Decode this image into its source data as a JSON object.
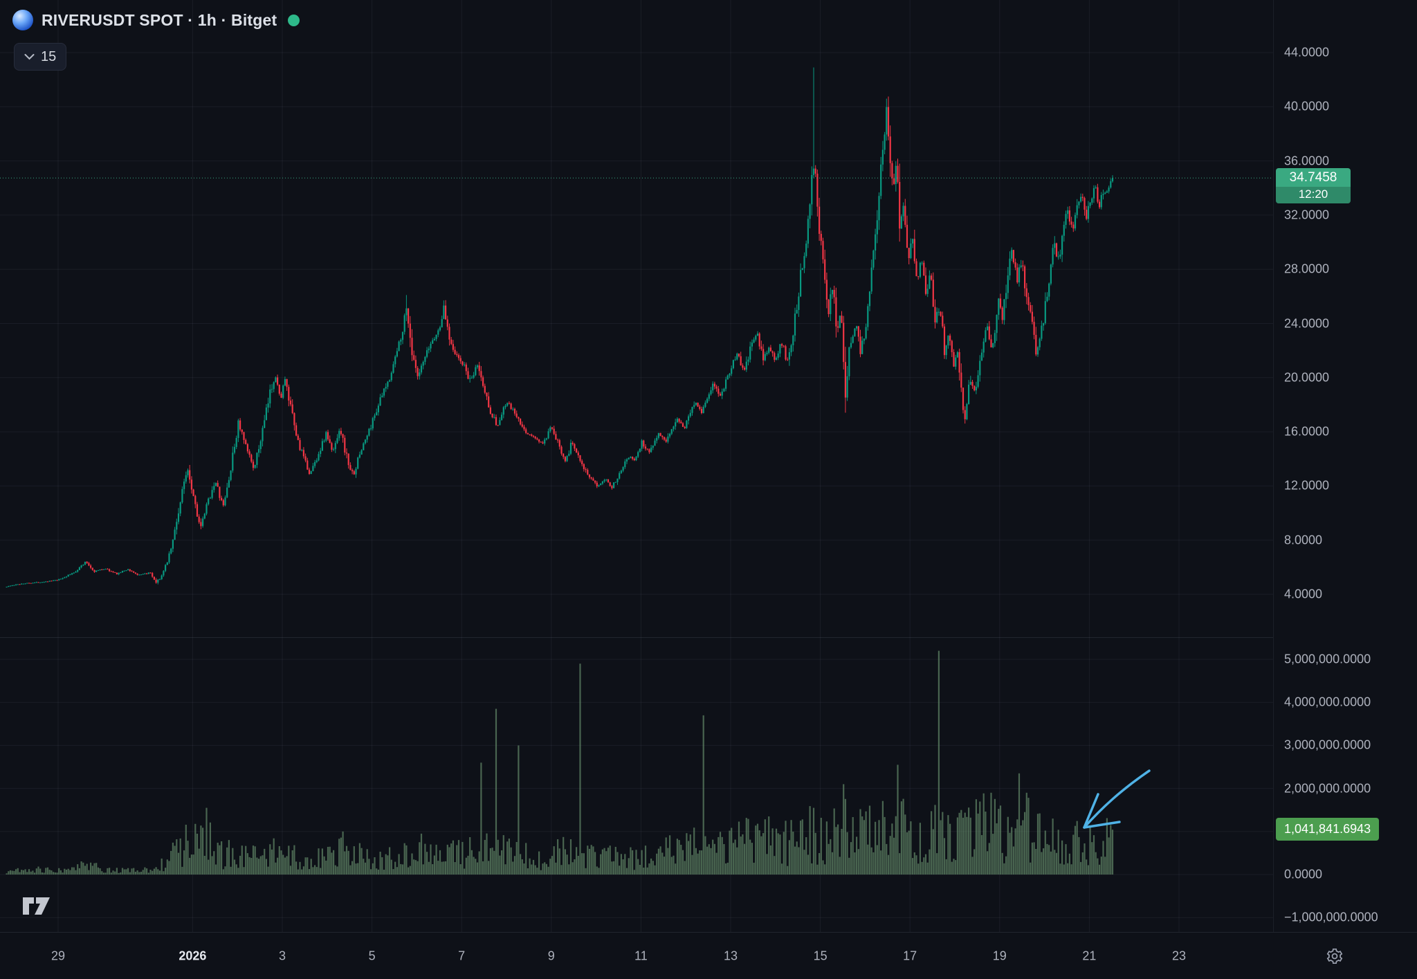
{
  "header": {
    "symbol_title": "RIVERUSDT SPOT · 1h · Bitget",
    "interval_badge": "15"
  },
  "price_label": {
    "price": "34.7458",
    "countdown": "12:20"
  },
  "volume_label": {
    "value": "1,041,841.6943"
  },
  "price_scale": {
    "ticks": [
      {
        "v": 44,
        "label": "44.0000"
      },
      {
        "v": 40,
        "label": "40.0000"
      },
      {
        "v": 36,
        "label": "36.0000"
      },
      {
        "v": 32,
        "label": "32.0000"
      },
      {
        "v": 28,
        "label": "28.0000"
      },
      {
        "v": 24,
        "label": "24.0000"
      },
      {
        "v": 20,
        "label": "20.0000"
      },
      {
        "v": 16,
        "label": "16.0000"
      },
      {
        "v": 12,
        "label": "12.0000"
      },
      {
        "v": 8,
        "label": "8.0000"
      },
      {
        "v": 4,
        "label": "4.0000"
      }
    ]
  },
  "volume_scale": {
    "ticks": [
      {
        "v": 5,
        "label": "5,000,000.0000"
      },
      {
        "v": 4,
        "label": "4,000,000.0000"
      },
      {
        "v": 3,
        "label": "3,000,000.0000"
      },
      {
        "v": 2,
        "label": "2,000,000.0000"
      },
      {
        "v": 1,
        "label": "1,000,000.0000"
      },
      {
        "v": 0,
        "label": "0.0000"
      },
      {
        "v": -1,
        "label": "−1,000,000.0000"
      }
    ]
  },
  "time_axis": {
    "ticks": [
      {
        "t": 0,
        "label": "29"
      },
      {
        "t": 3,
        "label": "2026",
        "major": true
      },
      {
        "t": 5,
        "label": "3"
      },
      {
        "t": 7,
        "label": "5"
      },
      {
        "t": 9,
        "label": "7"
      },
      {
        "t": 11,
        "label": "9"
      },
      {
        "t": 13,
        "label": "11"
      },
      {
        "t": 15,
        "label": "13"
      },
      {
        "t": 17,
        "label": "15"
      },
      {
        "t": 19,
        "label": "17"
      },
      {
        "t": 21,
        "label": "19"
      },
      {
        "t": 23,
        "label": "21"
      },
      {
        "t": 25,
        "label": "23"
      }
    ]
  },
  "colors": {
    "background": "#0e1118",
    "grid": "rgba(150,160,186,0.09)",
    "up": "#089981",
    "down": "#f23645",
    "volume_bar": "#6e9a73",
    "axis_text": "#aeb2bd",
    "title_text": "#dde1e8",
    "status_dot": "#2eb98a",
    "price_badge_bg": "#3aa981",
    "volume_badge_bg": "#4c9e4f",
    "price_line": "#3aa981",
    "pane_divider": "rgba(150,160,186,0.14)"
  },
  "annotation_arrow": {
    "color": "#4fb2e6",
    "tail": [
      1661,
      1114
    ],
    "c1": [
      1620,
      1142
    ],
    "c2": [
      1592,
      1168
    ],
    "tip": [
      1567,
      1196
    ],
    "wing1": [
      1587,
      1148
    ],
    "wing2": [
      1618,
      1188
    ]
  },
  "chart_data": {
    "type": "candlestick+volume",
    "symbol": "RIVERUSDT",
    "market_type": "SPOT",
    "exchange": "Bitget",
    "interval": "1h",
    "last_price": 34.7458,
    "bar_close_countdown": "12:20",
    "last_volume_m": 1.0418416943,
    "price_axis": {
      "min": 4,
      "max": 44,
      "step": 4
    },
    "volume_axis_millions": {
      "min": -1,
      "max": 5,
      "step": 1
    },
    "time_units": "days since Dec 29 (t=3 is Jan 1 2026)",
    "t_start": -1.19,
    "t_end": 23.55,
    "price_anchors": [
      [
        -1.19,
        4.55
      ],
      [
        -0.8,
        4.8
      ],
      [
        -0.4,
        4.9
      ],
      [
        0,
        5.05
      ],
      [
        0.35,
        5.6
      ],
      [
        0.62,
        6.4
      ],
      [
        0.8,
        5.7
      ],
      [
        1.05,
        5.9
      ],
      [
        1.3,
        5.5
      ],
      [
        1.55,
        5.85
      ],
      [
        1.8,
        5.4
      ],
      [
        2.05,
        5.6
      ],
      [
        2.18,
        4.75
      ],
      [
        2.35,
        5.6
      ],
      [
        2.55,
        7.8
      ],
      [
        2.75,
        11.2
      ],
      [
        2.88,
        13.5
      ],
      [
        3.02,
        11.3
      ],
      [
        3.18,
        8.8
      ],
      [
        3.32,
        10.6
      ],
      [
        3.5,
        12.4
      ],
      [
        3.68,
        10.4
      ],
      [
        3.85,
        13.2
      ],
      [
        4.02,
        16.7
      ],
      [
        4.18,
        14.9
      ],
      [
        4.38,
        13.3
      ],
      [
        4.58,
        16.4
      ],
      [
        4.75,
        19.2
      ],
      [
        4.85,
        20.3
      ],
      [
        4.95,
        18.2
      ],
      [
        5.05,
        19.9
      ],
      [
        5.18,
        17.8
      ],
      [
        5.32,
        15.6
      ],
      [
        5.5,
        13.8
      ],
      [
        5.62,
        12.9
      ],
      [
        5.8,
        14.3
      ],
      [
        5.98,
        15.9
      ],
      [
        6.12,
        14.4
      ],
      [
        6.28,
        16.4
      ],
      [
        6.45,
        13.9
      ],
      [
        6.58,
        12.7
      ],
      [
        6.75,
        14.6
      ],
      [
        6.95,
        16.2
      ],
      [
        7.15,
        18.1
      ],
      [
        7.35,
        19.6
      ],
      [
        7.55,
        21.8
      ],
      [
        7.68,
        23.6
      ],
      [
        7.78,
        25.2
      ],
      [
        7.9,
        21.6
      ],
      [
        8.02,
        19.9
      ],
      [
        8.18,
        21.4
      ],
      [
        8.32,
        22.6
      ],
      [
        8.48,
        23.4
      ],
      [
        8.6,
        25.1
      ],
      [
        8.73,
        23
      ],
      [
        8.88,
        21.6
      ],
      [
        9.05,
        20.9
      ],
      [
        9.2,
        19.6
      ],
      [
        9.35,
        21
      ],
      [
        9.52,
        18.9
      ],
      [
        9.66,
        17.4
      ],
      [
        9.8,
        16.4
      ],
      [
        10,
        18.2
      ],
      [
        10.18,
        17.4
      ],
      [
        10.38,
        16.1
      ],
      [
        10.6,
        15.6
      ],
      [
        10.82,
        15.1
      ],
      [
        11,
        16.3
      ],
      [
        11.18,
        14.9
      ],
      [
        11.32,
        13.9
      ],
      [
        11.46,
        15.2
      ],
      [
        11.62,
        14.2
      ],
      [
        11.82,
        12.7
      ],
      [
        12.02,
        12
      ],
      [
        12.2,
        12.6
      ],
      [
        12.36,
        11.9
      ],
      [
        12.52,
        13
      ],
      [
        12.7,
        14.2
      ],
      [
        12.86,
        13.9
      ],
      [
        13.02,
        15.2
      ],
      [
        13.18,
        14.5
      ],
      [
        13.4,
        16
      ],
      [
        13.56,
        15.1
      ],
      [
        13.8,
        17.1
      ],
      [
        13.96,
        16.2
      ],
      [
        14.2,
        18.3
      ],
      [
        14.36,
        17.5
      ],
      [
        14.6,
        19.5
      ],
      [
        14.76,
        18.6
      ],
      [
        15,
        20.7
      ],
      [
        15.16,
        21.8
      ],
      [
        15.3,
        20.3
      ],
      [
        15.46,
        22.4
      ],
      [
        15.6,
        23.2
      ],
      [
        15.72,
        21.3
      ],
      [
        15.86,
        22.3
      ],
      [
        16,
        21.2
      ],
      [
        16.14,
        22.6
      ],
      [
        16.26,
        21
      ],
      [
        16.4,
        23.6
      ],
      [
        16.55,
        27.2
      ],
      [
        16.7,
        30.8
      ],
      [
        16.8,
        34.8
      ],
      [
        16.88,
        35.8
      ],
      [
        16.98,
        30.8
      ],
      [
        17.08,
        27.4
      ],
      [
        17.18,
        24.9
      ],
      [
        17.28,
        27.2
      ],
      [
        17.38,
        23.2
      ],
      [
        17.46,
        25.2
      ],
      [
        17.56,
        18.9
      ],
      [
        17.68,
        22.8
      ],
      [
        17.8,
        24
      ],
      [
        17.9,
        21.9
      ],
      [
        18,
        23.6
      ],
      [
        18.1,
        26.6
      ],
      [
        18.2,
        30.1
      ],
      [
        18.32,
        33.8
      ],
      [
        18.42,
        38
      ],
      [
        18.48,
        40.2
      ],
      [
        18.56,
        36.4
      ],
      [
        18.63,
        34
      ],
      [
        18.7,
        36.2
      ],
      [
        18.78,
        31.4
      ],
      [
        18.86,
        33
      ],
      [
        18.96,
        29
      ],
      [
        19.06,
        30.4
      ],
      [
        19.16,
        27
      ],
      [
        19.26,
        28.7
      ],
      [
        19.36,
        26.2
      ],
      [
        19.46,
        27.9
      ],
      [
        19.56,
        24.1
      ],
      [
        19.66,
        25.4
      ],
      [
        19.76,
        22.1
      ],
      [
        19.86,
        23.1
      ],
      [
        19.96,
        20.9
      ],
      [
        20.06,
        21.9
      ],
      [
        20.16,
        18.4
      ],
      [
        20.24,
        17
      ],
      [
        20.34,
        20.2
      ],
      [
        20.44,
        18.8
      ],
      [
        20.58,
        21.6
      ],
      [
        20.72,
        23.7
      ],
      [
        20.84,
        22.1
      ],
      [
        20.96,
        25.9
      ],
      [
        21.06,
        24.4
      ],
      [
        21.18,
        27.6
      ],
      [
        21.28,
        29.5
      ],
      [
        21.38,
        27.1
      ],
      [
        21.48,
        28.7
      ],
      [
        21.58,
        26.5
      ],
      [
        21.72,
        24.1
      ],
      [
        21.82,
        21.7
      ],
      [
        21.92,
        23.1
      ],
      [
        22.02,
        25.6
      ],
      [
        22.12,
        27.4
      ],
      [
        22.22,
        29.9
      ],
      [
        22.32,
        28.5
      ],
      [
        22.42,
        30.8
      ],
      [
        22.52,
        32.4
      ],
      [
        22.62,
        30.7
      ],
      [
        22.72,
        32.7
      ],
      [
        22.82,
        33.5
      ],
      [
        22.92,
        31.7
      ],
      [
        23.02,
        33.1
      ],
      [
        23.12,
        34.3
      ],
      [
        23.22,
        32.8
      ],
      [
        23.32,
        33.7
      ],
      [
        23.45,
        34.2
      ],
      [
        23.55,
        34.75
      ]
    ],
    "wick_highs": [
      [
        7.78,
        26.1
      ],
      [
        8.6,
        25.7
      ],
      [
        16.85,
        42.9
      ],
      [
        18.48,
        40.6
      ]
    ],
    "wick_lows": [
      [
        17.56,
        18.3
      ],
      [
        20.24,
        16.8
      ]
    ],
    "volume_base": [
      [
        -1.19,
        0.09
      ],
      [
        0,
        0.12
      ],
      [
        0.6,
        0.22
      ],
      [
        1.1,
        0.12
      ],
      [
        1.7,
        0.09
      ],
      [
        2.1,
        0.1
      ],
      [
        2.4,
        0.35
      ],
      [
        2.7,
        0.6
      ],
      [
        3,
        0.85
      ],
      [
        3.3,
        0.9
      ],
      [
        3.6,
        0.5
      ],
      [
        3.9,
        0.45
      ],
      [
        4.2,
        0.55
      ],
      [
        4.5,
        0.35
      ],
      [
        4.8,
        0.5
      ],
      [
        5.2,
        0.42
      ],
      [
        5.6,
        0.32
      ],
      [
        6,
        0.4
      ],
      [
        6.4,
        0.62
      ],
      [
        6.8,
        0.42
      ],
      [
        7.2,
        0.38
      ],
      [
        7.6,
        0.5
      ],
      [
        8,
        0.45
      ],
      [
        8.4,
        0.42
      ],
      [
        8.8,
        0.5
      ],
      [
        9.2,
        0.5
      ],
      [
        9.6,
        0.6
      ],
      [
        10,
        0.55
      ],
      [
        10.4,
        0.45
      ],
      [
        10.8,
        0.35
      ],
      [
        11.2,
        0.5
      ],
      [
        11.6,
        0.55
      ],
      [
        12,
        0.4
      ],
      [
        12.4,
        0.42
      ],
      [
        12.8,
        0.38
      ],
      [
        13.2,
        0.45
      ],
      [
        13.6,
        0.55
      ],
      [
        14,
        0.6
      ],
      [
        14.4,
        0.7
      ],
      [
        14.8,
        0.65
      ],
      [
        15.2,
        0.8
      ],
      [
        15.6,
        0.72
      ],
      [
        16,
        0.8
      ],
      [
        16.4,
        0.72
      ],
      [
        16.8,
        0.95
      ],
      [
        17.2,
        0.85
      ],
      [
        17.6,
        1.05
      ],
      [
        18,
        0.9
      ],
      [
        18.4,
        1.1
      ],
      [
        18.8,
        1.05
      ],
      [
        19.2,
        0.9
      ],
      [
        19.6,
        1
      ],
      [
        20,
        0.9
      ],
      [
        20.4,
        1.05
      ],
      [
        20.8,
        1.1
      ],
      [
        21.2,
        0.95
      ],
      [
        21.6,
        1.05
      ],
      [
        22,
        0.8
      ],
      [
        22.4,
        0.7
      ],
      [
        22.8,
        0.72
      ],
      [
        23.2,
        0.6
      ],
      [
        23.55,
        0.9
      ]
    ],
    "volume_spikes": [
      [
        3.29,
        1.55
      ],
      [
        6.37,
        1
      ],
      [
        8.1,
        0.95
      ],
      [
        9.42,
        2.6
      ],
      [
        9.78,
        3.85
      ],
      [
        10.26,
        3
      ],
      [
        11.63,
        4.9
      ],
      [
        14.4,
        3.7
      ],
      [
        15.86,
        1.35
      ],
      [
        16.23,
        1.25
      ],
      [
        16.85,
        1.55
      ],
      [
        17.5,
        2.1
      ],
      [
        18.1,
        1.6
      ],
      [
        18.73,
        2.55
      ],
      [
        19.66,
        5.2
      ],
      [
        20.14,
        1.5
      ],
      [
        20.48,
        1.75
      ],
      [
        20.83,
        1.9
      ],
      [
        21.45,
        2.35
      ],
      [
        21.6,
        1.9
      ],
      [
        22.2,
        1.3
      ]
    ]
  }
}
